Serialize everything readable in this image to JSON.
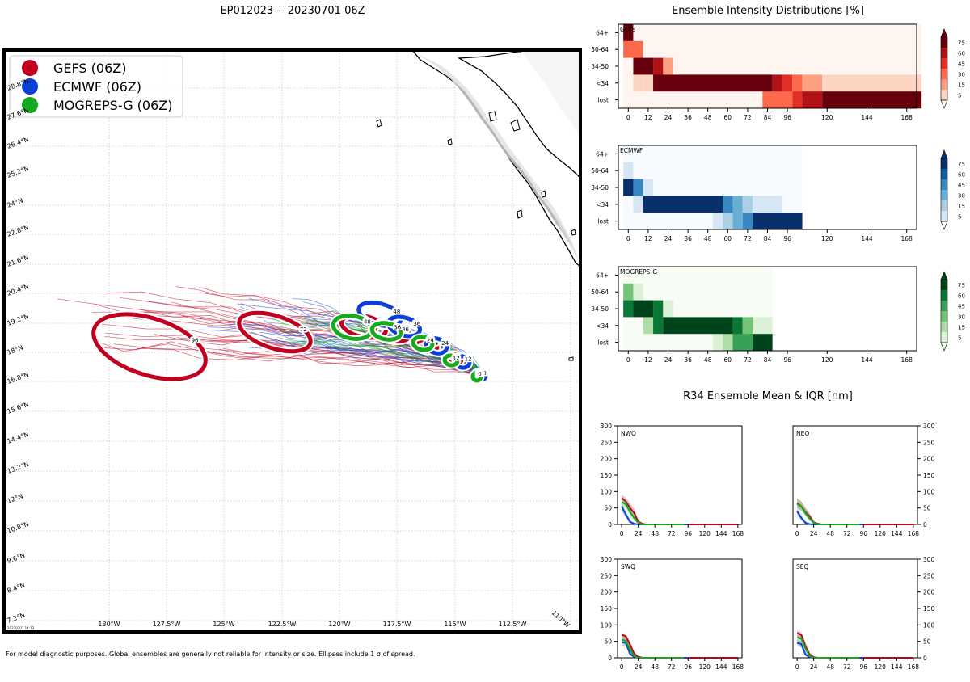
{
  "chart_data": [
    {
      "type": "map",
      "title": "EP012023 -- 20230701 06Z",
      "legend": [
        {
          "label": "GEFS (06Z)",
          "color": "#c0001e"
        },
        {
          "label": "ECMWF (06Z)",
          "color": "#0a3fd9"
        },
        {
          "label": "MOGREPS-G (06Z)",
          "color": "#18aa1e"
        }
      ],
      "lon_labels": [
        "130°W",
        "127.5°W",
        "125°W",
        "122.5°W",
        "120°W",
        "117.5°W",
        "115°W",
        "112.5°W",
        "110°W"
      ],
      "lat_labels": [
        "7.2°N",
        "8.4°N",
        "9.6°N",
        "10.8°N",
        "12°N",
        "13.2°N",
        "14.4°N",
        "15.6°N",
        "16.8°N",
        "18°N",
        "19.2°N",
        "20.4°N",
        "21.6°N",
        "22.8°N",
        "24°N",
        "25.2°N",
        "26.4°N",
        "27.6°N",
        "28.8°N"
      ],
      "stamp": "20230701 14:13",
      "footnote": "For model diagnostic purposes. Global ensembles are generally not reliable for intensity or size. Ellipses include 1 σ of spread.",
      "ellipse_hours": {
        "gefs": [
          "96",
          "72",
          "48",
          "36",
          "24",
          "12",
          "0"
        ],
        "ecmwf": [
          "48",
          "36",
          "24",
          "12",
          "0"
        ],
        "mogreps": [
          "48",
          "36",
          "24",
          "12",
          "0"
        ]
      }
    },
    {
      "type": "heatmap",
      "title": "Ensemble Intensity Distributions [%]",
      "y_categories": [
        "64+",
        "50-64",
        "34-50",
        "<34",
        "lost"
      ],
      "x_ticks": [
        "0",
        "12",
        "24",
        "36",
        "48",
        "60",
        "72",
        "84",
        "96",
        "120",
        "144",
        "168"
      ],
      "colorbar_ticks": [
        "5",
        "15",
        "30",
        "45",
        "60",
        "75"
      ],
      "panels": [
        {
          "name": "GEFS",
          "cmap": "red",
          "rows": {
            "64+": [
              [
                0,
                6,
                80
              ],
              [
                6,
                180,
                2
              ]
            ],
            "50-64": [
              [
                0,
                12,
                35
              ],
              [
                12,
                180,
                2
              ]
            ],
            "34-50": [
              [
                0,
                6,
                2
              ],
              [
                6,
                18,
                85
              ],
              [
                18,
                24,
                65
              ],
              [
                24,
                30,
                18
              ],
              [
                30,
                180,
                2
              ]
            ],
            "<34": [
              [
                0,
                6,
                2
              ],
              [
                6,
                12,
                5
              ],
              [
                12,
                18,
                12
              ],
              [
                18,
                90,
                85
              ],
              [
                90,
                96,
                70
              ],
              [
                96,
                102,
                55
              ],
              [
                102,
                108,
                40
              ],
              [
                108,
                120,
                25
              ],
              [
                120,
                180,
                12
              ]
            ],
            "lost": [
              [
                0,
                84,
                2
              ],
              [
                84,
                102,
                30
              ],
              [
                102,
                108,
                45
              ],
              [
                108,
                120,
                65
              ],
              [
                120,
                180,
                85
              ]
            ]
          }
        },
        {
          "name": "ECMWF",
          "cmap": "blue",
          "rows": {
            "64+": [
              [
                0,
                108,
                2
              ]
            ],
            "50-64": [
              [
                0,
                6,
                12
              ],
              [
                6,
                108,
                2
              ]
            ],
            "34-50": [
              [
                0,
                6,
                80
              ],
              [
                6,
                12,
                50
              ],
              [
                12,
                18,
                12
              ],
              [
                18,
                108,
                2
              ]
            ],
            "<34": [
              [
                0,
                6,
                2
              ],
              [
                6,
                12,
                12
              ],
              [
                12,
                60,
                85
              ],
              [
                60,
                66,
                55
              ],
              [
                66,
                72,
                40
              ],
              [
                72,
                78,
                25
              ],
              [
                78,
                96,
                10
              ],
              [
                96,
                108,
                2
              ]
            ],
            "lost": [
              [
                0,
                54,
                2
              ],
              [
                54,
                60,
                5
              ],
              [
                60,
                66,
                15
              ],
              [
                66,
                72,
                30
              ],
              [
                72,
                78,
                50
              ],
              [
                78,
                108,
                85
              ]
            ]
          }
        },
        {
          "name": "MOGREPS-G",
          "cmap": "green",
          "rows": {
            "64+": [
              [
                0,
                90,
                2
              ]
            ],
            "50-64": [
              [
                0,
                6,
                30
              ],
              [
                6,
                12,
                12
              ],
              [
                12,
                90,
                2
              ]
            ],
            "34-50": [
              [
                0,
                6,
                60
              ],
              [
                6,
                18,
                85
              ],
              [
                18,
                24,
                60
              ],
              [
                24,
                30,
                12
              ],
              [
                30,
                90,
                2
              ]
            ],
            "<34": [
              [
                0,
                12,
                2
              ],
              [
                12,
                18,
                15
              ],
              [
                18,
                24,
                60
              ],
              [
                24,
                66,
                85
              ],
              [
                66,
                72,
                60
              ],
              [
                72,
                78,
                30
              ],
              [
                78,
                90,
                12
              ]
            ],
            "lost": [
              [
                0,
                54,
                2
              ],
              [
                54,
                60,
                5
              ],
              [
                60,
                66,
                15
              ],
              [
                66,
                78,
                55
              ],
              [
                78,
                90,
                85
              ]
            ]
          }
        }
      ]
    },
    {
      "type": "line",
      "title": "R34 Ensemble Mean & IQR [nm]",
      "yticks": [
        "0",
        "50",
        "100",
        "150",
        "200",
        "250",
        "300"
      ],
      "xticks": [
        "0",
        "24",
        "48",
        "72",
        "96",
        "120",
        "144",
        "168"
      ],
      "ylim": [
        0,
        300
      ],
      "xlim": [
        -6,
        174
      ],
      "panels": [
        {
          "name": "NWQ",
          "axis": "left",
          "series": [
            {
              "name": "GEFS",
              "x": [
                0,
                6,
                12,
                18,
                24,
                30,
                36,
                168
              ],
              "mean": [
                80,
                70,
                50,
                35,
                8,
                2,
                0,
                0
              ],
              "q1": [
                65,
                55,
                38,
                20,
                3,
                0,
                0,
                0
              ],
              "q3": [
                90,
                82,
                65,
                48,
                15,
                5,
                0,
                0
              ]
            },
            {
              "name": "ECMWF",
              "x": [
                0,
                6,
                12,
                18,
                24,
                96
              ],
              "mean": [
                55,
                30,
                8,
                2,
                0,
                0
              ],
              "q1": [
                40,
                20,
                4,
                0,
                0,
                0
              ],
              "q3": [
                65,
                40,
                15,
                5,
                0,
                0
              ]
            },
            {
              "name": "MOGREPS-G",
              "x": [
                0,
                6,
                12,
                18,
                24,
                30,
                90
              ],
              "mean": [
                68,
                62,
                38,
                20,
                5,
                0,
                0
              ],
              "q1": [
                55,
                48,
                25,
                10,
                2,
                0,
                0
              ],
              "q3": [
                80,
                75,
                50,
                30,
                10,
                2,
                0
              ]
            }
          ]
        },
        {
          "name": "NEQ",
          "axis": "right",
          "series": [
            {
              "name": "GEFS",
              "x": [
                0,
                6,
                12,
                18,
                24,
                30,
                36,
                168
              ],
              "mean": [
                65,
                55,
                38,
                25,
                6,
                2,
                0,
                0
              ],
              "q1": [
                50,
                42,
                28,
                15,
                3,
                0,
                0,
                0
              ],
              "q3": [
                80,
                70,
                52,
                35,
                12,
                4,
                0,
                0
              ]
            },
            {
              "name": "ECMWF",
              "x": [
                0,
                6,
                12,
                18,
                24,
                96
              ],
              "mean": [
                40,
                20,
                5,
                1,
                0,
                0
              ],
              "q1": [
                30,
                12,
                2,
                0,
                0,
                0
              ],
              "q3": [
                50,
                30,
                10,
                3,
                0,
                0
              ]
            },
            {
              "name": "MOGREPS-G",
              "x": [
                0,
                6,
                12,
                18,
                24,
                30,
                90
              ],
              "mean": [
                62,
                55,
                35,
                18,
                5,
                0,
                0
              ],
              "q1": [
                50,
                42,
                25,
                10,
                2,
                0,
                0
              ],
              "q3": [
                78,
                70,
                48,
                28,
                10,
                2,
                0
              ]
            }
          ]
        },
        {
          "name": "SWQ",
          "axis": "left",
          "series": [
            {
              "name": "GEFS",
              "x": [
                0,
                6,
                12,
                18,
                24,
                30,
                168
              ],
              "mean": [
                70,
                65,
                40,
                12,
                3,
                0,
                0
              ],
              "q1": [
                58,
                52,
                30,
                6,
                0,
                0,
                0
              ],
              "q3": [
                75,
                72,
                52,
                20,
                6,
                0,
                0
              ]
            },
            {
              "name": "ECMWF",
              "x": [
                0,
                6,
                12,
                18,
                24,
                96
              ],
              "mean": [
                48,
                45,
                12,
                3,
                0,
                0
              ],
              "q1": [
                38,
                35,
                6,
                0,
                0,
                0
              ],
              "q3": [
                55,
                52,
                20,
                6,
                0,
                0
              ]
            },
            {
              "name": "MOGREPS-G",
              "x": [
                0,
                6,
                12,
                18,
                24,
                90
              ],
              "mean": [
                55,
                52,
                25,
                5,
                0,
                0
              ],
              "q1": [
                45,
                42,
                15,
                2,
                0,
                0
              ],
              "q3": [
                65,
                62,
                35,
                10,
                2,
                0
              ]
            }
          ]
        },
        {
          "name": "SEQ",
          "axis": "right",
          "series": [
            {
              "name": "GEFS",
              "x": [
                0,
                6,
                12,
                18,
                24,
                30,
                168
              ],
              "mean": [
                75,
                70,
                35,
                10,
                2,
                0,
                0
              ],
              "q1": [
                60,
                55,
                25,
                5,
                0,
                0,
                0
              ],
              "q3": [
                82,
                78,
                48,
                18,
                5,
                0,
                0
              ]
            },
            {
              "name": "ECMWF",
              "x": [
                0,
                6,
                12,
                18,
                24,
                96
              ],
              "mean": [
                45,
                42,
                10,
                2,
                0,
                0
              ],
              "q1": [
                35,
                32,
                5,
                0,
                0,
                0
              ],
              "q3": [
                55,
                50,
                18,
                5,
                0,
                0
              ]
            },
            {
              "name": "MOGREPS-G",
              "x": [
                0,
                6,
                12,
                18,
                24,
                90
              ],
              "mean": [
                62,
                58,
                28,
                6,
                0,
                0
              ],
              "q1": [
                50,
                45,
                18,
                2,
                0,
                0
              ],
              "q3": [
                70,
                66,
                38,
                12,
                2,
                0
              ]
            }
          ]
        }
      ]
    }
  ]
}
